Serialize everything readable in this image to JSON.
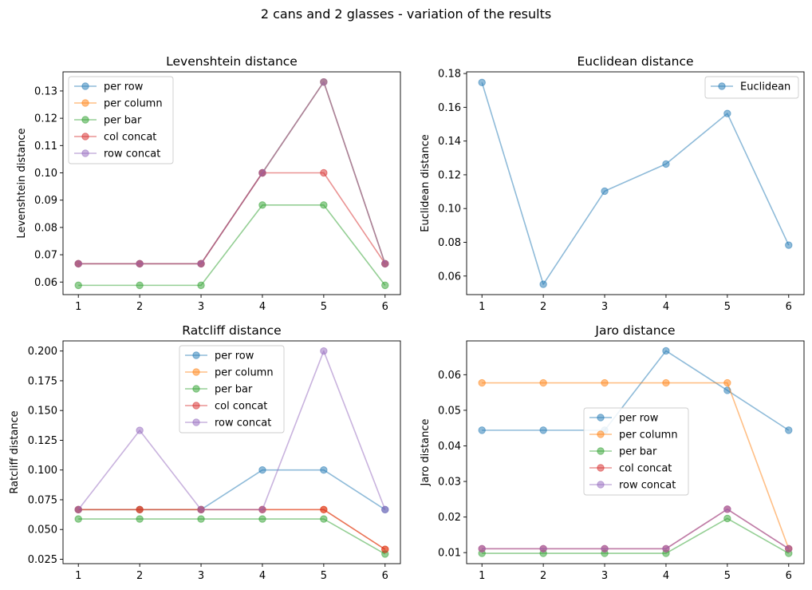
{
  "figure_title": "2 cans and 2 glasses - variation of the results",
  "colors": {
    "per row": "#1f77b4",
    "per column": "#ff7f0e",
    "per bar": "#2ca02c",
    "col concat": "#d62728",
    "row concat": "#9467bd",
    "Euclidean": "#1f77b4"
  },
  "chart_data": [
    {
      "type": "line",
      "title": "Levenshtein distance",
      "xlabel": "",
      "ylabel": "Levenshtein distance",
      "x": [
        1,
        2,
        3,
        4,
        5,
        6
      ],
      "xlim": [
        0.75,
        6.25
      ],
      "ylim": [
        0.0554,
        0.137
      ],
      "yticks": [
        "0.06",
        "0.07",
        "0.08",
        "0.09",
        "0.10",
        "0.11",
        "0.12",
        "0.13"
      ],
      "legend_position": "upper-left",
      "series": [
        {
          "name": "per row",
          "values": [
            0.0667,
            0.0667,
            0.0667,
            0.1,
            0.1333,
            0.0667
          ]
        },
        {
          "name": "per column",
          "values": [
            0.0667,
            0.0667,
            0.0667,
            0.1,
            0.1333,
            0.0667
          ]
        },
        {
          "name": "per bar",
          "values": [
            0.0588,
            0.0588,
            0.0588,
            0.0882,
            0.0882,
            0.0588
          ]
        },
        {
          "name": "col concat",
          "values": [
            0.0667,
            0.0667,
            0.0667,
            0.1,
            0.1,
            0.0667
          ]
        },
        {
          "name": "row concat",
          "values": [
            0.0667,
            0.0667,
            0.0667,
            0.1,
            0.1333,
            0.0667
          ]
        }
      ]
    },
    {
      "type": "line",
      "title": "Euclidean distance",
      "xlabel": "",
      "ylabel": "Euclidean distance",
      "x": [
        1,
        2,
        3,
        4,
        5,
        6
      ],
      "xlim": [
        0.75,
        6.25
      ],
      "ylim": [
        0.049,
        0.181
      ],
      "yticks": [
        "0.06",
        "0.08",
        "0.10",
        "0.12",
        "0.14",
        "0.16",
        "0.18"
      ],
      "legend_position": "upper-right",
      "series": [
        {
          "name": "Euclidean",
          "values": [
            0.1747,
            0.0551,
            0.1103,
            0.1264,
            0.1563,
            0.0783
          ]
        }
      ]
    },
    {
      "type": "line",
      "title": "Ratcliff distance",
      "xlabel": "",
      "ylabel": "Ratcliff distance",
      "x": [
        1,
        2,
        3,
        4,
        5,
        6
      ],
      "xlim": [
        0.75,
        6.25
      ],
      "ylim": [
        0.0213,
        0.2085
      ],
      "yticks": [
        "0.025",
        "0.050",
        "0.075",
        "0.100",
        "0.125",
        "0.150",
        "0.175",
        "0.200"
      ],
      "legend_position": "upper-center",
      "series": [
        {
          "name": "per row",
          "values": [
            0.0667,
            0.0667,
            0.0667,
            0.1,
            0.1,
            0.0667
          ]
        },
        {
          "name": "per column",
          "values": [
            0.0667,
            0.0667,
            0.0667,
            0.0667,
            0.0667,
            0.0333
          ]
        },
        {
          "name": "per bar",
          "values": [
            0.0588,
            0.0588,
            0.0588,
            0.0588,
            0.0588,
            0.0294
          ]
        },
        {
          "name": "col concat",
          "values": [
            0.0667,
            0.0667,
            0.0667,
            0.0667,
            0.0667,
            0.0333
          ]
        },
        {
          "name": "row concat",
          "values": [
            0.0667,
            0.1333,
            0.0667,
            0.0667,
            0.2,
            0.0667
          ]
        }
      ]
    },
    {
      "type": "line",
      "title": "Jaro distance",
      "xlabel": "",
      "ylabel": "Jaro distance",
      "x": [
        1,
        2,
        3,
        4,
        5,
        6
      ],
      "xlim": [
        0.75,
        6.25
      ],
      "ylim": [
        0.0069,
        0.0695
      ],
      "yticks": [
        "0.01",
        "0.02",
        "0.03",
        "0.04",
        "0.05",
        "0.06"
      ],
      "legend_position": "center",
      "series": [
        {
          "name": "per row",
          "values": [
            0.0444,
            0.0444,
            0.0444,
            0.0667,
            0.0556,
            0.0444
          ]
        },
        {
          "name": "per column",
          "values": [
            0.0577,
            0.0577,
            0.0577,
            0.0577,
            0.0577,
            0.0111
          ]
        },
        {
          "name": "per bar",
          "values": [
            0.0098,
            0.0098,
            0.0098,
            0.0098,
            0.0196,
            0.0098
          ]
        },
        {
          "name": "col concat",
          "values": [
            0.0111,
            0.0111,
            0.0111,
            0.0111,
            0.0222,
            0.0111
          ]
        },
        {
          "name": "row concat",
          "values": [
            0.0111,
            0.0111,
            0.0111,
            0.0111,
            0.0222,
            0.0111
          ]
        }
      ]
    }
  ]
}
